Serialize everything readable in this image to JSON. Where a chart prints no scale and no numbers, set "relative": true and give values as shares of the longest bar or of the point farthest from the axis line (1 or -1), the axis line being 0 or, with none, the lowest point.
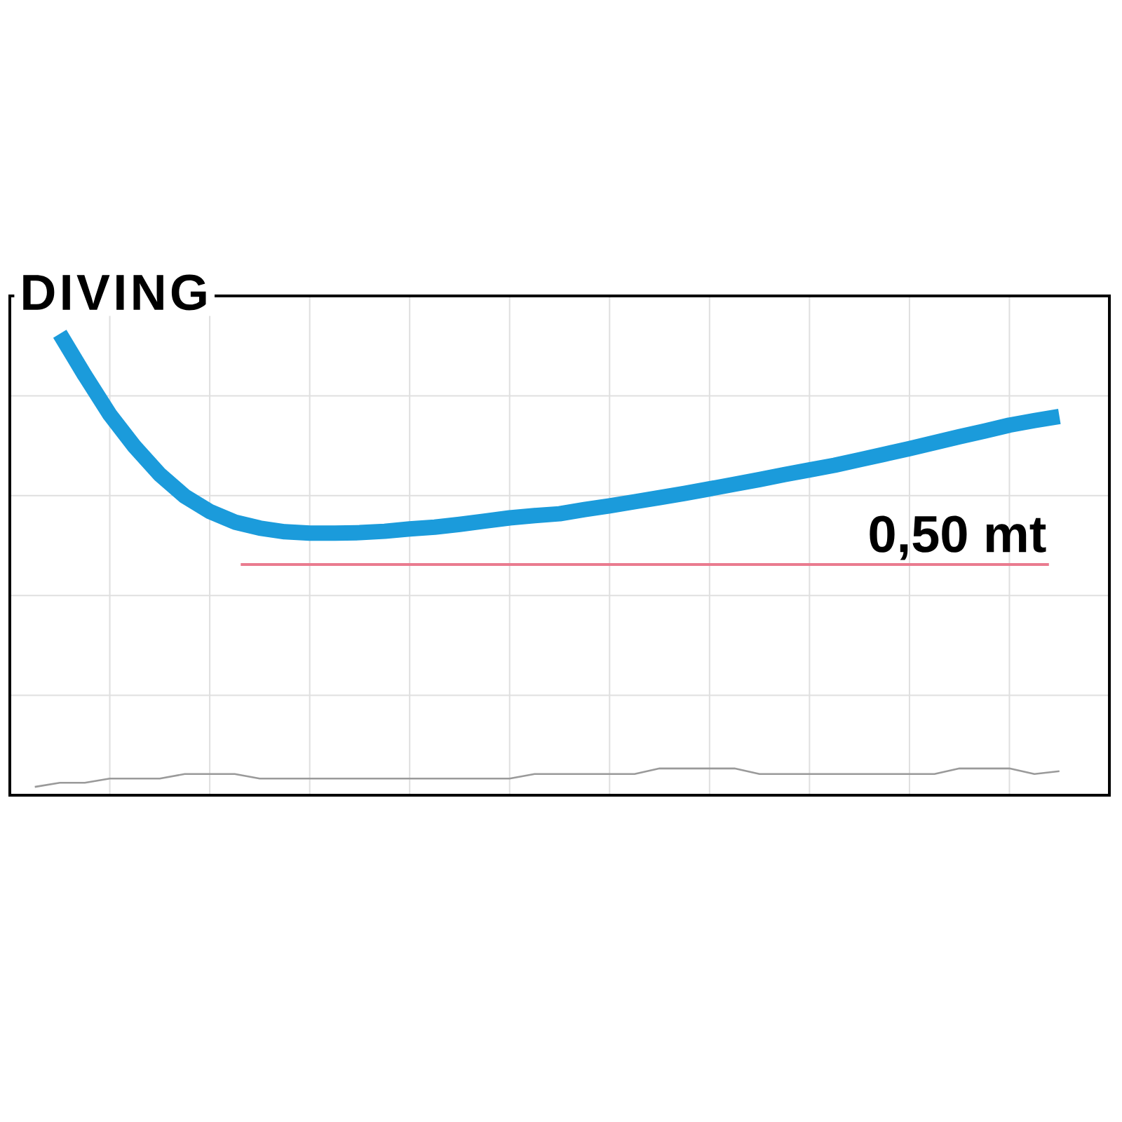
{
  "chart_data": {
    "type": "line",
    "title": "DIVING",
    "relative": true,
    "grid": true,
    "categories": [
      null,
      null,
      null,
      null,
      null,
      null,
      null,
      null,
      null,
      null,
      null,
      null,
      null,
      null,
      null,
      null,
      null,
      null,
      null,
      null,
      null,
      null,
      null,
      null,
      null,
      null,
      null,
      null,
      null,
      null,
      null,
      null,
      null,
      null,
      null,
      null,
      null,
      null,
      null,
      null,
      null,
      null,
      null,
      null,
      null
    ],
    "series": [
      {
        "color": "#1b9bdb",
        "values": [
          null,
          null,
          1.0,
          0.91,
          0.825,
          0.755,
          0.695,
          0.648,
          0.615,
          0.592,
          0.579,
          0.571,
          0.568,
          0.568,
          0.569,
          0.572,
          0.577,
          0.581,
          0.587,
          0.594,
          0.601,
          0.606,
          0.61,
          0.619,
          0.627,
          0.636,
          0.645,
          0.654,
          0.664,
          0.674,
          0.684,
          0.695,
          0.705,
          0.715,
          0.727,
          0.739,
          0.751,
          0.764,
          0.777,
          0.789,
          0.802,
          0.812,
          0.821,
          null,
          null
        ]
      },
      {
        "color": "#9a9a9a",
        "values": [
          null,
          0.018,
          0.027,
          0.027,
          0.036,
          0.036,
          0.036,
          0.046,
          0.046,
          0.046,
          0.036,
          0.036,
          0.036,
          0.036,
          0.036,
          0.036,
          0.036,
          0.036,
          0.036,
          0.036,
          0.036,
          0.046,
          0.046,
          0.046,
          0.046,
          0.046,
          0.058,
          0.058,
          0.058,
          0.058,
          0.046,
          0.046,
          0.046,
          0.046,
          0.046,
          0.046,
          0.046,
          0.046,
          0.058,
          0.058,
          0.058,
          0.046,
          0.052,
          null,
          null
        ]
      }
    ],
    "ref_lines": [
      {
        "axis": "y",
        "value": 0.5,
        "label": "0,50 mt",
        "color": "#ea7b8f"
      }
    ]
  }
}
